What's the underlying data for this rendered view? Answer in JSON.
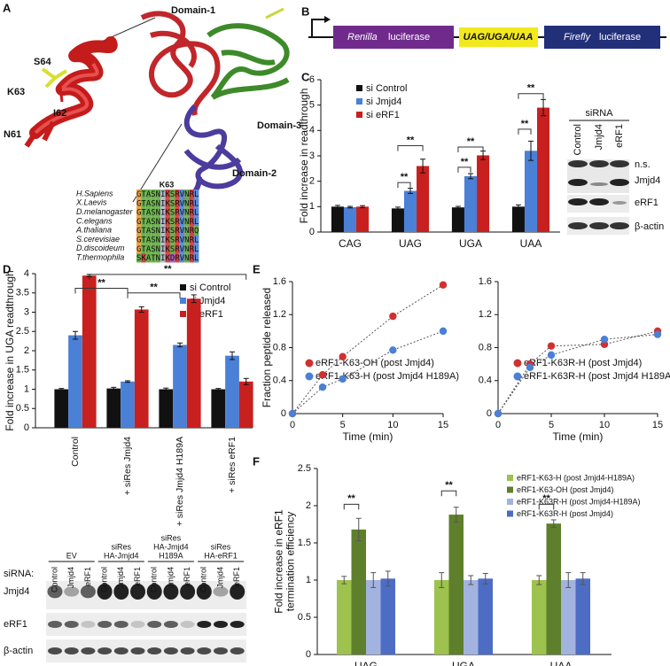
{
  "panel_labels": [
    "A",
    "B",
    "C",
    "D",
    "E",
    "F"
  ],
  "structure": {
    "domain1": "Domain-1",
    "domain2": "Domain-2",
    "domain3": "Domain-3",
    "residues": [
      "S64",
      "K63",
      "I62",
      "N61"
    ]
  },
  "alignment": {
    "position": "K63",
    "rows": [
      {
        "species": "H.Sapiens",
        "sequence": "GTASNIKSRVNRL"
      },
      {
        "species": "X.Laevis",
        "sequence": "GTASNIKSRVNRL"
      },
      {
        "species": "D.melanogaster",
        "sequence": "GTASNIKSRVNRL"
      },
      {
        "species": "C.elegans",
        "sequence": "GTASNIKSRVNRL"
      },
      {
        "species": "A.thaliana",
        "sequence": "GTASNIKSRVNRQ"
      },
      {
        "species": "S.cerevisiae",
        "sequence": "GTASNIKSRVNRL"
      },
      {
        "species": "D.discoideum",
        "sequence": "GTASNIKSRVNRL"
      },
      {
        "species": "T.thermophila",
        "sequence": "SKATNIKDRVNRL"
      }
    ]
  },
  "construct": {
    "renilla": "Renilla",
    "firefly": "Firefly",
    "suffix": "luciferase",
    "stop": "UAG/UGA/UAA"
  },
  "blot_c": {
    "header": "siRNA",
    "lanes": [
      "Control",
      "Jmjd4",
      "eRF1"
    ],
    "ns": "n.s.",
    "rows": [
      "Jmjd4",
      "eRF1",
      "β-actin"
    ]
  },
  "blot_d": {
    "prefix": "siRNA:",
    "groups": [
      [
        "EV"
      ],
      [
        "siRes",
        "HA-Jmjd4"
      ],
      [
        "siRes",
        "HA-Jmjd4",
        "H189A"
      ],
      [
        "siRes",
        "HA-eRF1"
      ]
    ],
    "lanes": [
      "Control",
      "Jmjd4",
      "eRF1"
    ],
    "rows": [
      "Jmjd4",
      "eRF1",
      "β-actin"
    ]
  },
  "chart_data": [
    {
      "type": "bar",
      "ylabel": [
        "Fold increase in readthrough"
      ],
      "categories": [
        "CAG",
        "UAG",
        "UGA",
        "UAA"
      ],
      "series": [
        {
          "name": "si Control",
          "color": "#111111",
          "values": [
            1.0,
            0.93,
            0.97,
            1.0
          ],
          "errors": [
            0.05,
            0.05,
            0.04,
            0.07
          ]
        },
        {
          "name": "si Jmjd4",
          "color": "#4a80d6",
          "values": [
            0.98,
            1.62,
            2.2,
            3.2
          ],
          "errors": [
            0.03,
            0.1,
            0.1,
            0.38
          ]
        },
        {
          "name": "si eRF1",
          "color": "#c8201f",
          "values": [
            1.0,
            2.6,
            3.02,
            4.9
          ],
          "errors": [
            0.04,
            0.27,
            0.17,
            0.32
          ]
        }
      ],
      "ylim": [
        0,
        6
      ],
      "yticks": [
        0,
        1,
        2,
        3,
        4,
        5,
        6
      ],
      "significance": "**"
    },
    {
      "type": "bar",
      "ylabel": [
        "Fold increase in UGA readthrough"
      ],
      "categories": [
        "Control",
        "+ siRes Jmjd4",
        "+ siRes Jmjd4 H189A",
        "+ siRes eRF1"
      ],
      "series": [
        {
          "name": "si Control",
          "color": "#111111",
          "values": [
            1.0,
            1.02,
            1.0,
            1.0
          ],
          "errors": [
            0.02,
            0.03,
            0.03,
            0.02
          ]
        },
        {
          "name": "si Jmjd4",
          "color": "#4a80d6",
          "values": [
            2.4,
            1.2,
            2.15,
            1.87
          ],
          "errors": [
            0.1,
            0.02,
            0.05,
            0.1
          ]
        },
        {
          "name": "si eRF1",
          "color": "#c8201f",
          "values": [
            3.95,
            3.07,
            3.35,
            1.2
          ],
          "errors": [
            0.03,
            0.07,
            0.1,
            0.08
          ]
        }
      ],
      "ylim": [
        0,
        4
      ],
      "yticks": [
        0,
        0.5,
        1,
        1.5,
        2,
        2.5,
        3,
        3.5,
        4
      ],
      "significance": "**"
    },
    {
      "type": "line",
      "ylabel": [
        "Fraction peptide released"
      ],
      "xlabel": "Time (min)",
      "x": [
        0,
        3,
        5,
        10,
        15
      ],
      "series": [
        {
          "name": "eRF1-K63-OH (post Jmjd4)",
          "color": "#d03030",
          "values": [
            0,
            0.47,
            0.69,
            1.18,
            1.56
          ]
        },
        {
          "name": "eRF1-K63-H   (post Jmjd4 H189A)",
          "color": "#4a80d6",
          "values": [
            0,
            0.32,
            0.42,
            0.77,
            1.0
          ]
        }
      ],
      "xlim": [
        0,
        15
      ],
      "xticks": [
        0,
        5,
        10,
        15
      ],
      "ylim": [
        0,
        1.6
      ],
      "yticks": [
        0,
        0.4,
        0.8,
        1.2,
        1.6
      ]
    },
    {
      "type": "line",
      "x": [
        0,
        3,
        5,
        10,
        15
      ],
      "series": [
        {
          "name": "eRF1-K63R-H (post Jmjd4)",
          "color": "#d03030",
          "values": [
            0,
            0.6,
            0.82,
            0.84,
            1.0
          ]
        },
        {
          "name": "eRF1-K63R-H (post Jmjd4 H189A)",
          "color": "#4a80d6",
          "values": [
            0,
            0.56,
            0.71,
            0.9,
            0.96
          ]
        }
      ],
      "xlabel": "Time (min)",
      "xlim": [
        0,
        15
      ],
      "xticks": [
        0,
        5,
        10,
        15
      ],
      "ylim": [
        0,
        1.6
      ],
      "yticks": [
        0,
        0.4,
        0.8,
        1.2,
        1.6
      ]
    },
    {
      "type": "bar",
      "ylabel": [
        "Fold increase in eRF1",
        "termination efficiency"
      ],
      "categories": [
        "UAG",
        "UGA",
        "UAA"
      ],
      "series": [
        {
          "name": "eRF1-K63-H   (post Jmjd4-H189A)",
          "color": "#9dc24d",
          "values": [
            1.0,
            1.0,
            1.0
          ],
          "errors": [
            0.05,
            0.1,
            0.06
          ]
        },
        {
          "name": "eRF1-K63-OH (post Jmjd4)",
          "color": "#5e7f2b",
          "values": [
            1.68,
            1.88,
            1.76
          ],
          "errors": [
            0.15,
            0.1,
            0.05
          ]
        },
        {
          "name": "eRF1-K63R-H (post Jmjd4-H189A)",
          "color": "#a3b3e0",
          "values": [
            1.0,
            1.0,
            1.0
          ],
          "errors": [
            0.1,
            0.06,
            0.1
          ]
        },
        {
          "name": "eRF1-K63R-H (post Jmjd4)",
          "color": "#4d6cc4",
          "values": [
            1.02,
            1.02,
            1.02
          ],
          "errors": [
            0.1,
            0.07,
            0.08
          ]
        }
      ],
      "ylim": [
        0,
        2.5
      ],
      "yticks": [
        0,
        0.5,
        1,
        1.5,
        2,
        2.5
      ],
      "significance": "**"
    }
  ]
}
